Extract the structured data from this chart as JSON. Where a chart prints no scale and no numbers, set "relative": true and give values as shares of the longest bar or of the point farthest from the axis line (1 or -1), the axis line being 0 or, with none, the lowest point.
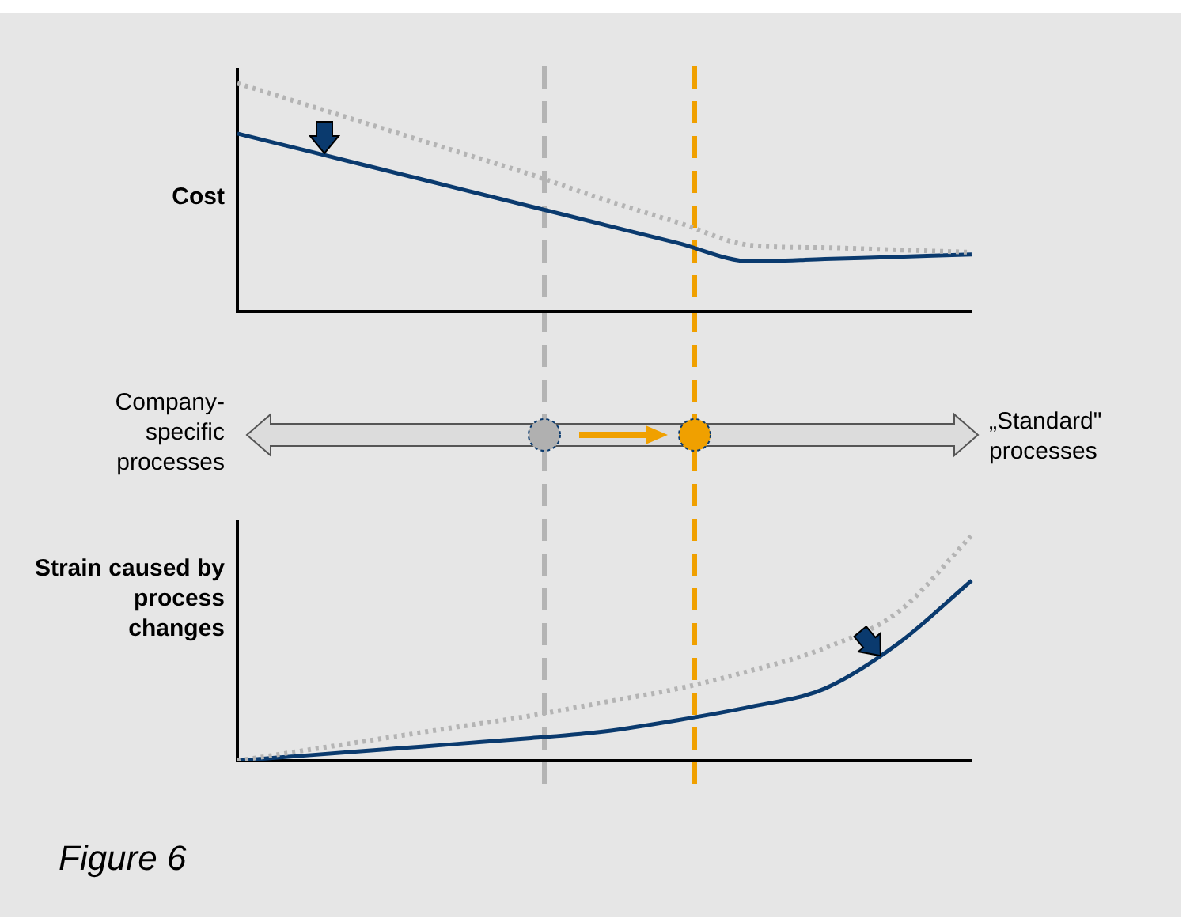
{
  "chart_data": [
    {
      "type": "line",
      "ylabel": "Cost",
      "relative": true,
      "categories": [
        null,
        null,
        null,
        null,
        null,
        null,
        null,
        null,
        null,
        null,
        null
      ],
      "series": [
        {
          "color": "#b4b4b4",
          "line_style": "dotted",
          "values": [
            1.0,
            0.9,
            0.8,
            0.7,
            0.6,
            0.49,
            0.39,
            0.29,
            0.28,
            0.27,
            0.26
          ]
        },
        {
          "color": "#0a3a6e",
          "line_style": "solid",
          "values": [
            0.78,
            0.7,
            0.62,
            0.54,
            0.46,
            0.38,
            0.3,
            0.22,
            0.23,
            0.24,
            0.25
          ]
        }
      ]
    },
    {
      "type": "other",
      "annotations": [
        "Company-specific processes",
        "„Standard\" processes"
      ]
    },
    {
      "type": "line",
      "ylabel": "Strain caused by process changes",
      "relative": true,
      "categories": [
        null,
        null,
        null,
        null,
        null,
        null,
        null,
        null,
        null,
        null,
        null
      ],
      "series": [
        {
          "color": "#b4b4b4",
          "line_style": "dotted",
          "values": [
            0,
            0.05,
            0.1,
            0.15,
            0.2,
            0.26,
            0.32,
            0.4,
            0.5,
            0.66,
            1.0
          ]
        },
        {
          "color": "#0a3a6e",
          "line_style": "solid",
          "values": [
            0,
            0.025,
            0.05,
            0.075,
            0.1,
            0.13,
            0.18,
            0.24,
            0.32,
            0.52,
            0.8
          ]
        }
      ],
      "annotations": [
        "Figure 6"
      ]
    }
  ]
}
